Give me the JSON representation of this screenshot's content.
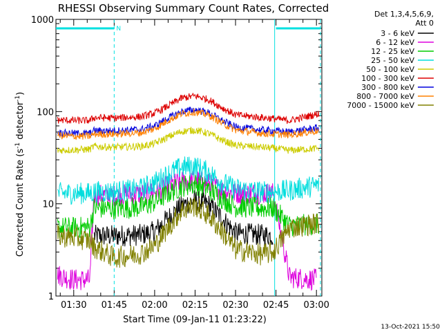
{
  "chart_data": {
    "type": "line",
    "title": "RHESSI Observing Summary Count Rates, Corrected",
    "xlabel": "Start Time (09-Jan-11 01:23:22)",
    "ylabel_main": "Corrected Count Rate (s",
    "ylabel_sup1": "-1",
    "ylabel_mid": " detector",
    "ylabel_sup2": "-1",
    "ylabel_end": ")",
    "y_scale": "log",
    "ylim": [
      1,
      1000
    ],
    "y_ticks": [
      {
        "value": 1,
        "label": "1"
      },
      {
        "value": 10,
        "label": "10"
      },
      {
        "value": 100,
        "label": "100"
      },
      {
        "value": 1000,
        "label": "1000"
      }
    ],
    "x_range_minutes": [
      83.4,
      182.0
    ],
    "x_ticks": [
      {
        "minute": 90,
        "label": "01:30"
      },
      {
        "minute": 105,
        "label": "01:45"
      },
      {
        "minute": 120,
        "label": "02:00"
      },
      {
        "minute": 135,
        "label": "02:15"
      },
      {
        "minute": 150,
        "label": "02:30"
      },
      {
        "minute": 165,
        "label": "02:45"
      },
      {
        "minute": 180,
        "label": "03:00"
      }
    ],
    "legend_header": [
      "Det 1,3,4,5,6,9,",
      "Att 0"
    ],
    "legend_placement": "right",
    "series": [
      {
        "name": "3 - 6 keV",
        "color": "#000000",
        "points": [
          [
            83.4,
            null
          ],
          [
            90,
            null
          ],
          [
            97.5,
            4.5
          ],
          [
            105,
            4.5
          ],
          [
            115,
            4.6
          ],
          [
            120,
            5.0
          ],
          [
            125,
            7.0
          ],
          [
            130,
            9.5
          ],
          [
            135,
            11.0
          ],
          [
            140,
            9.8
          ],
          [
            145,
            7.0
          ],
          [
            150,
            4.8
          ],
          [
            160,
            4.6
          ],
          [
            164,
            4.5
          ],
          [
            170,
            null
          ],
          [
            182,
            null
          ]
        ]
      },
      {
        "name": "6 - 12 keV",
        "color": "#dd00dd",
        "points": [
          [
            84,
            1.7
          ],
          [
            90,
            1.5
          ],
          [
            96,
            1.5
          ],
          [
            97.5,
            12.5
          ],
          [
            105,
            12.3
          ],
          [
            115,
            12.8
          ],
          [
            120,
            13.5
          ],
          [
            125,
            15.5
          ],
          [
            130,
            17.5
          ],
          [
            135,
            18.0
          ],
          [
            140,
            16.5
          ],
          [
            145,
            14.0
          ],
          [
            150,
            13.0
          ],
          [
            160,
            13.0
          ],
          [
            164,
            13.0
          ],
          [
            170,
            1.6
          ],
          [
            180,
            1.5
          ]
        ]
      },
      {
        "name": "12 - 25 keV",
        "color": "#00cc00",
        "points": [
          [
            84,
            5.5
          ],
          [
            90,
            5.5
          ],
          [
            96,
            5.6
          ],
          [
            97.5,
            9.0
          ],
          [
            105,
            8.9
          ],
          [
            115,
            9.2
          ],
          [
            120,
            10.5
          ],
          [
            125,
            13.0
          ],
          [
            130,
            15.5
          ],
          [
            135,
            16.5
          ],
          [
            140,
            14.5
          ],
          [
            145,
            11.5
          ],
          [
            150,
            9.3
          ],
          [
            160,
            9.0
          ],
          [
            164,
            9.0
          ],
          [
            170,
            5.8
          ],
          [
            181,
            6.0
          ]
        ]
      },
      {
        "name": "25 - 50 keV",
        "color": "#00dddd",
        "points": [
          [
            84,
            13.0
          ],
          [
            90,
            13.0
          ],
          [
            96,
            13.0
          ],
          [
            97.5,
            13.5
          ],
          [
            105,
            13.5
          ],
          [
            115,
            14.5
          ],
          [
            120,
            17.0
          ],
          [
            125,
            21.0
          ],
          [
            130,
            25.0
          ],
          [
            135,
            25.5
          ],
          [
            140,
            22.0
          ],
          [
            145,
            17.0
          ],
          [
            150,
            14.5
          ],
          [
            160,
            13.5
          ],
          [
            164,
            13.5
          ],
          [
            170,
            14.0
          ],
          [
            181,
            16.0
          ]
        ]
      },
      {
        "name": "50 - 100 keV",
        "color": "#cccc00",
        "points": [
          [
            84,
            38
          ],
          [
            90,
            38.5
          ],
          [
            96,
            39
          ],
          [
            97.5,
            42
          ],
          [
            105,
            41
          ],
          [
            115,
            42
          ],
          [
            120,
            45
          ],
          [
            125,
            53
          ],
          [
            130,
            61
          ],
          [
            135,
            63
          ],
          [
            140,
            58
          ],
          [
            145,
            49
          ],
          [
            150,
            43
          ],
          [
            160,
            41
          ],
          [
            164,
            40
          ],
          [
            170,
            38
          ],
          [
            181,
            40
          ]
        ]
      },
      {
        "name": "100 - 300 keV",
        "color": "#dd0000",
        "points": [
          [
            84,
            81
          ],
          [
            90,
            80
          ],
          [
            96,
            80
          ],
          [
            97.5,
            86
          ],
          [
            105,
            85
          ],
          [
            115,
            88
          ],
          [
            120,
            96
          ],
          [
            125,
            115
          ],
          [
            130,
            140
          ],
          [
            135,
            148
          ],
          [
            140,
            135
          ],
          [
            145,
            110
          ],
          [
            150,
            92
          ],
          [
            160,
            86
          ],
          [
            164,
            84
          ],
          [
            170,
            80
          ],
          [
            181,
            95
          ]
        ]
      },
      {
        "name": "300 - 800 keV",
        "color": "#0000dd",
        "points": [
          [
            84,
            59
          ],
          [
            90,
            58
          ],
          [
            96,
            58
          ],
          [
            97.5,
            62
          ],
          [
            105,
            62
          ],
          [
            115,
            64
          ],
          [
            120,
            70
          ],
          [
            125,
            85
          ],
          [
            130,
            100
          ],
          [
            135,
            105
          ],
          [
            140,
            97
          ],
          [
            145,
            80
          ],
          [
            150,
            68
          ],
          [
            160,
            63
          ],
          [
            164,
            62
          ],
          [
            170,
            60
          ],
          [
            181,
            67
          ]
        ]
      },
      {
        "name": "800 - 7000 keV",
        "color": "#ff8000",
        "points": [
          [
            84,
            55
          ],
          [
            90,
            54
          ],
          [
            96,
            54
          ],
          [
            97.5,
            57
          ],
          [
            105,
            57
          ],
          [
            115,
            59
          ],
          [
            120,
            65
          ],
          [
            125,
            80
          ],
          [
            130,
            95
          ],
          [
            135,
            99
          ],
          [
            140,
            92
          ],
          [
            145,
            75
          ],
          [
            150,
            63
          ],
          [
            160,
            58
          ],
          [
            164,
            57
          ],
          [
            170,
            56
          ],
          [
            181,
            62
          ]
        ]
      },
      {
        "name": "7000 - 15000 keV",
        "color": "#808000",
        "points": [
          [
            84,
            4.5
          ],
          [
            90,
            4.3
          ],
          [
            96,
            4.0
          ],
          [
            97.5,
            3.4
          ],
          [
            105,
            2.6
          ],
          [
            115,
            2.9
          ],
          [
            120,
            3.5
          ],
          [
            125,
            5.5
          ],
          [
            130,
            8.5
          ],
          [
            135,
            9.5
          ],
          [
            140,
            7.5
          ],
          [
            145,
            5.0
          ],
          [
            150,
            3.2
          ],
          [
            160,
            2.8
          ],
          [
            164,
            3.0
          ],
          [
            170,
            5.5
          ],
          [
            181,
            6.2
          ]
        ]
      }
    ],
    "time_bars": [
      {
        "start_minute": 83.4,
        "end_minute": 105,
        "label": "N"
      },
      {
        "start_minute": 165,
        "end_minute": 181.5,
        "label": ""
      }
    ],
    "event_markers_minutes": [
      105,
      181.5
    ],
    "interval_markers_minutes": [
      164.5
    ]
  },
  "footer": {
    "date": "13-Oct-2021 15:50"
  }
}
